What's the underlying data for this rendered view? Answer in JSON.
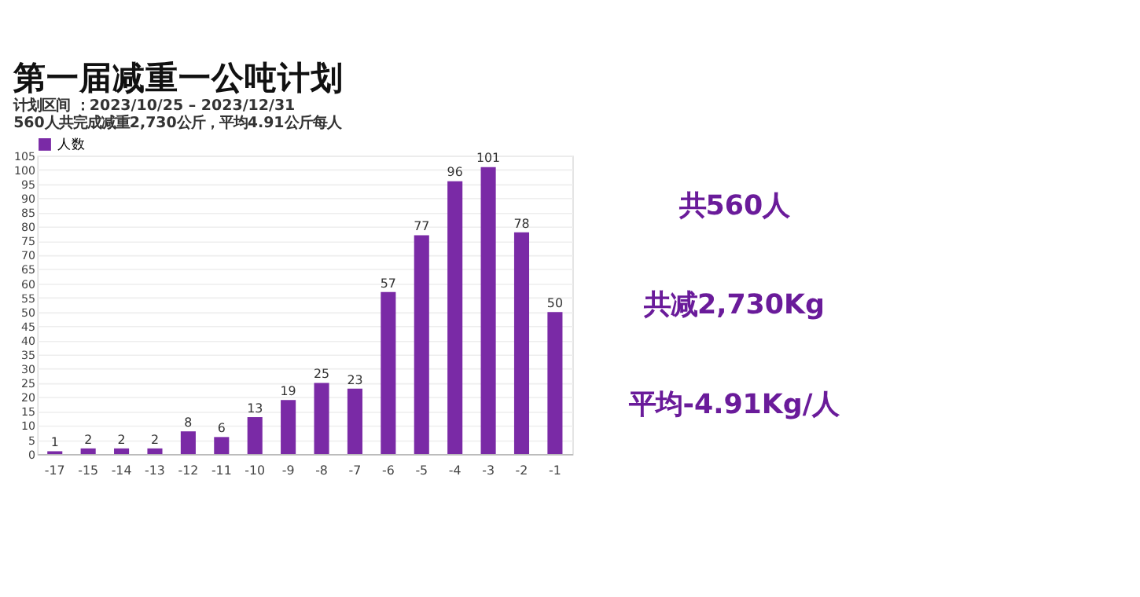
{
  "chart_data": {
    "type": "bar",
    "title": "第一届减重一公吨计划",
    "subtitle": [
      "计划区间 ：2023/10/25 – 2023/12/31",
      "560人共完成减重2,730公斤，平均4.91公斤每人"
    ],
    "categories": [
      "-17",
      "-15",
      "-14",
      "-13",
      "-12",
      "-11",
      "-10",
      "-9",
      "-8",
      "-7",
      "-6",
      "-5",
      "-4",
      "-3",
      "-2",
      "-1"
    ],
    "series": [
      {
        "name": "人数",
        "color": "#7a2aa6",
        "values": [
          1,
          2,
          2,
          2,
          8,
          6,
          13,
          19,
          25,
          23,
          57,
          77,
          96,
          101,
          78,
          50
        ]
      }
    ],
    "ylim": [
      0,
      105
    ],
    "yticks": [
      0,
      5,
      10,
      15,
      20,
      25,
      30,
      35,
      40,
      45,
      50,
      55,
      60,
      65,
      70,
      75,
      80,
      85,
      90,
      95,
      100,
      105
    ],
    "grid": "y",
    "legend": "top left",
    "data_labels": true,
    "annotations": [
      "共560人",
      "共减2,730Kg",
      "平均-4.91Kg/人"
    ]
  }
}
